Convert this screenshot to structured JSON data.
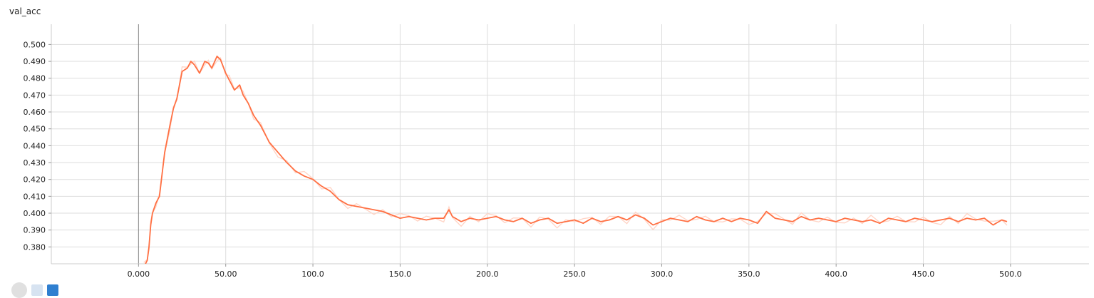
{
  "card": {
    "title": "val_acc"
  },
  "chart_data": {
    "type": "line",
    "title": "val_acc",
    "xlabel": "",
    "ylabel": "",
    "xlim": [
      -50,
      545
    ],
    "ylim": [
      0.37,
      0.512
    ],
    "x_ticks": [
      "0.000",
      "50.00",
      "100.0",
      "150.0",
      "200.0",
      "250.0",
      "300.0",
      "350.0",
      "400.0",
      "450.0",
      "500.0"
    ],
    "x_tick_values": [
      0,
      50,
      100,
      150,
      200,
      250,
      300,
      350,
      400,
      450,
      500
    ],
    "y_ticks": [
      "0.380",
      "0.390",
      "0.400",
      "0.410",
      "0.420",
      "0.430",
      "0.440",
      "0.450",
      "0.460",
      "0.470",
      "0.480",
      "0.490",
      "0.500"
    ],
    "y_tick_values": [
      0.38,
      0.39,
      0.4,
      0.41,
      0.42,
      0.43,
      0.44,
      0.45,
      0.46,
      0.47,
      0.48,
      0.49,
      0.5
    ],
    "grid": true,
    "colors": {
      "smoothed": "#ff7043",
      "raw": "#ffd5c7",
      "grid": "#dddddd",
      "zero_line": "#888888"
    },
    "series": [
      {
        "x": [
          3,
          5,
          6,
          7,
          8,
          10,
          12,
          15,
          18,
          20,
          22,
          25,
          28,
          30,
          32,
          35,
          38,
          40,
          42,
          45,
          47,
          50,
          52,
          55,
          58,
          60,
          63,
          66,
          70,
          75,
          80,
          85,
          90,
          95,
          100,
          105,
          110,
          115,
          120,
          125,
          130,
          135,
          140,
          145,
          150,
          155,
          160,
          165,
          170,
          175,
          178,
          180,
          185,
          190,
          195,
          200,
          205,
          210,
          215,
          220,
          225,
          230,
          235,
          240,
          245,
          250,
          255,
          260,
          265,
          270,
          275,
          280,
          285,
          290,
          295,
          300,
          305,
          310,
          315,
          320,
          325,
          330,
          335,
          340,
          345,
          350,
          355,
          360,
          365,
          370,
          375,
          380,
          385,
          390,
          395,
          400,
          405,
          410,
          415,
          420,
          425,
          430,
          435,
          440,
          445,
          450,
          455,
          460,
          465,
          470,
          475,
          480,
          485,
          490,
          495,
          498
        ],
        "values": [
          0.368,
          0.372,
          0.38,
          0.393,
          0.4,
          0.406,
          0.41,
          0.436,
          0.452,
          0.462,
          0.468,
          0.484,
          0.486,
          0.49,
          0.488,
          0.483,
          0.49,
          0.489,
          0.486,
          0.493,
          0.491,
          0.483,
          0.479,
          0.473,
          0.476,
          0.47,
          0.465,
          0.458,
          0.452,
          0.442,
          0.436,
          0.43,
          0.425,
          0.422,
          0.42,
          0.416,
          0.413,
          0.408,
          0.405,
          0.404,
          0.403,
          0.402,
          0.401,
          0.399,
          0.397,
          0.398,
          0.397,
          0.396,
          0.397,
          0.397,
          0.402,
          0.398,
          0.395,
          0.397,
          0.396,
          0.397,
          0.398,
          0.396,
          0.395,
          0.397,
          0.394,
          0.396,
          0.397,
          0.394,
          0.395,
          0.396,
          0.394,
          0.397,
          0.395,
          0.396,
          0.398,
          0.396,
          0.399,
          0.397,
          0.393,
          0.395,
          0.397,
          0.396,
          0.395,
          0.398,
          0.396,
          0.395,
          0.397,
          0.395,
          0.397,
          0.396,
          0.394,
          0.401,
          0.397,
          0.396,
          0.395,
          0.398,
          0.396,
          0.397,
          0.396,
          0.395,
          0.397,
          0.396,
          0.395,
          0.396,
          0.394,
          0.397,
          0.396,
          0.395,
          0.397,
          0.396,
          0.395,
          0.396,
          0.397,
          0.395,
          0.397,
          0.396,
          0.397,
          0.393,
          0.396,
          0.395
        ]
      }
    ]
  }
}
